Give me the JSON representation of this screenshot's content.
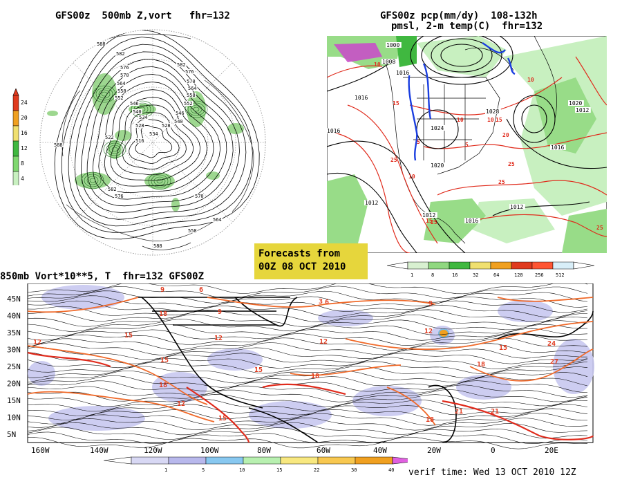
{
  "top_left": {
    "title": "GFS00z  500mb Z,vort   fhr=132",
    "colorbar": {
      "labels": [
        "24",
        "20",
        "16",
        "12",
        "8",
        "4"
      ],
      "colors": [
        "#e03a1e",
        "#f0a020",
        "#f0e070",
        "#40b840",
        "#80d870",
        "#c8f0c0"
      ]
    },
    "height_labels": [
      "588",
      "582",
      "576",
      "570",
      "564",
      "558",
      "552",
      "546",
      "540",
      "534",
      "528",
      "522",
      "516",
      "582",
      "576",
      "570",
      "564",
      "558",
      "552",
      "546",
      "540",
      "534",
      "528",
      "588",
      "582",
      "576",
      "570",
      "564",
      "558",
      "588"
    ]
  },
  "top_right": {
    "title_line1": "GFS00z pcp(mm/dy)  108-132h",
    "title_line2": "pmsl, 2-m temp(C)  fhr=132",
    "pressure_labels": [
      "1000",
      "1008",
      "1016",
      "1016",
      "1016",
      "1012",
      "1020",
      "1024",
      "1028",
      "1020",
      "1012",
      "1016",
      "1012",
      "1012",
      "1016"
    ],
    "temp_labels": [
      "10",
      "15",
      "25",
      "5",
      "10",
      "10",
      "15",
      "20",
      "25",
      "25",
      "10",
      "15",
      "25",
      "10",
      "25",
      "5"
    ],
    "colorbar": {
      "labels": [
        "1",
        "8",
        "16",
        "32",
        "64",
        "128",
        "256",
        "512"
      ],
      "colors": [
        "#d8f0d0",
        "#90d880",
        "#40b840",
        "#f0e070",
        "#f0a020",
        "#e03a1e",
        "#ff5533",
        "#d8eef8"
      ]
    }
  },
  "forecast_box": {
    "line1": "Forecasts from",
    "line2": "00Z 08 OCT 2010"
  },
  "bottom": {
    "title": "850mb Vort*10**5, T  fhr=132 GFS00Z",
    "lat_labels": [
      "45N",
      "40N",
      "35N",
      "30N",
      "25N",
      "20N",
      "15N",
      "10N",
      "5N"
    ],
    "lon_labels": [
      "160W",
      "140W",
      "120W",
      "100W",
      "80W",
      "60W",
      "40W",
      "20W",
      "0",
      "20E"
    ],
    "temp_labels": [
      "9",
      "6",
      "12",
      "15",
      "18",
      "15",
      "12",
      "9",
      "6",
      "3",
      "18",
      "15",
      "12",
      "18",
      "15",
      "12",
      "9",
      "18",
      "21",
      "24",
      "27",
      "15",
      "12",
      "18",
      "21"
    ],
    "colorbar": {
      "labels": [
        "1",
        "5",
        "10",
        "15",
        "22",
        "30",
        "40"
      ],
      "colors": [
        "#d8d8f4",
        "#b8b8ec",
        "#88c8f0",
        "#b8f0b0",
        "#f8e880",
        "#f8c850",
        "#f0a020",
        "#e060e0"
      ]
    },
    "verif_text": "verif time: Wed 13 OCT 2010 12Z"
  }
}
